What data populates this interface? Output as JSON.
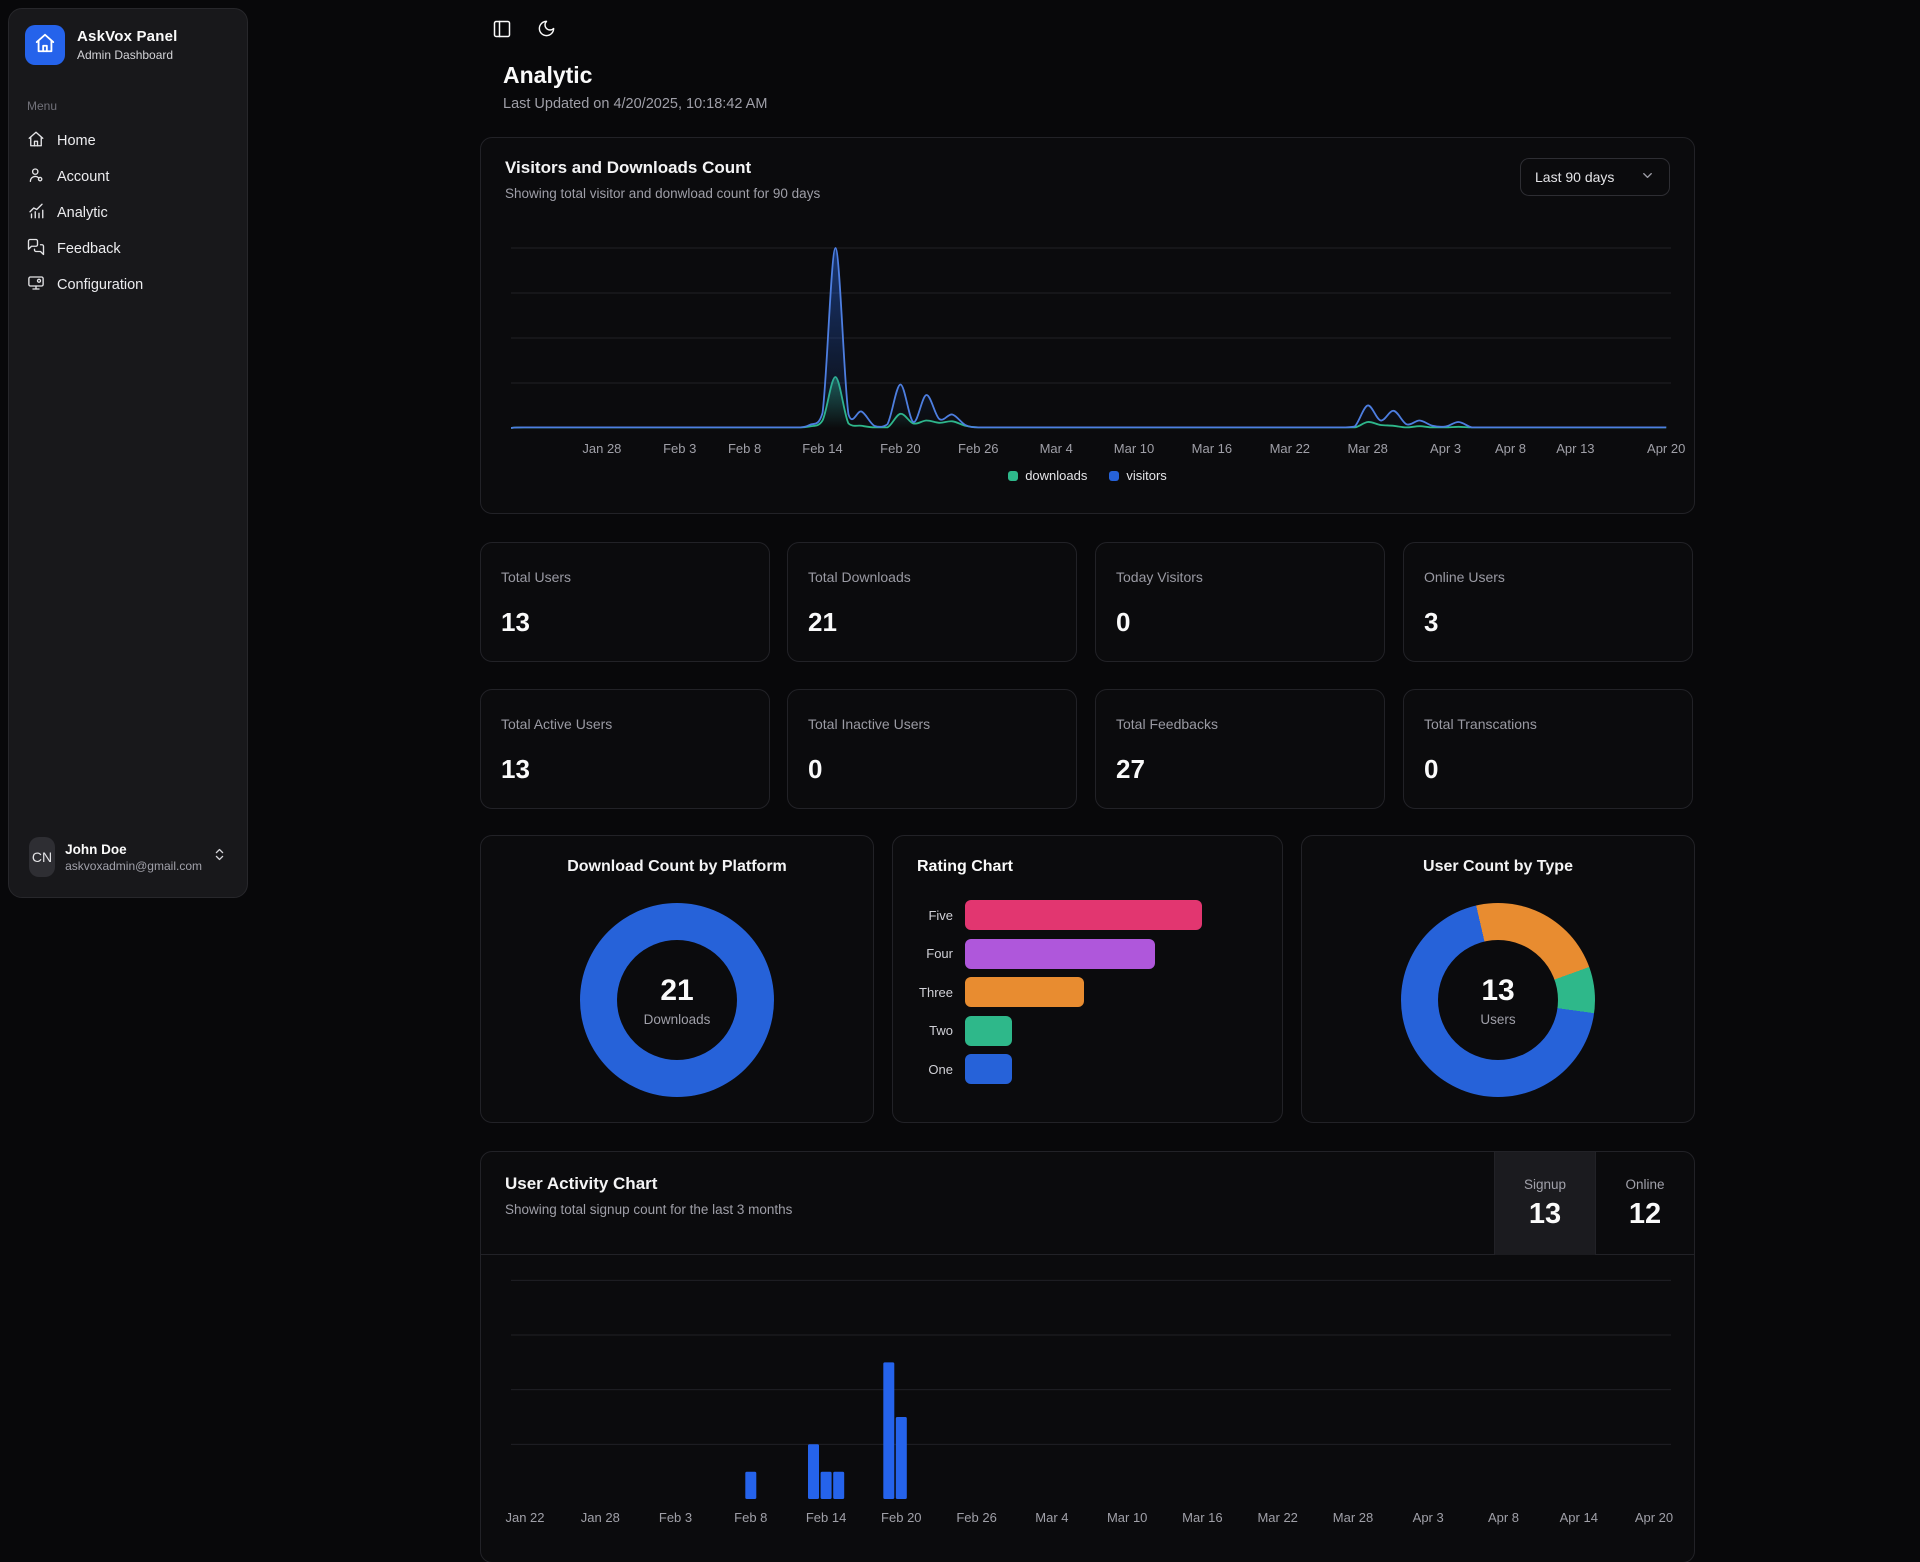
{
  "sidebar": {
    "app_name": "AskVox Panel",
    "app_subtitle": "Admin Dashboard",
    "menu_label": "Menu",
    "menu": [
      {
        "label": "Home"
      },
      {
        "label": "Account"
      },
      {
        "label": "Analytic"
      },
      {
        "label": "Feedback"
      },
      {
        "label": "Configuration"
      }
    ],
    "user": {
      "initials": "CN",
      "name": "John Doe",
      "email": "askvoxadmin@gmail.com"
    }
  },
  "header": {
    "title": "Analytic",
    "last_updated": "Last Updated on 4/20/2025, 10:18:42 AM"
  },
  "visitors_card": {
    "title": "Visitors and Downloads Count",
    "subtitle": "Showing total visitor and donwload count for 90 days",
    "range_select": "Last 90 days",
    "legend": {
      "downloads": "downloads",
      "visitors": "visitors"
    }
  },
  "stats": [
    {
      "label": "Total Users",
      "value": "13"
    },
    {
      "label": "Total Downloads",
      "value": "21"
    },
    {
      "label": "Today Visitors",
      "value": "0"
    },
    {
      "label": "Online Users",
      "value": "3"
    },
    {
      "label": "Total Active Users",
      "value": "13"
    },
    {
      "label": "Total Inactive Users",
      "value": "0"
    },
    {
      "label": "Total Feedbacks",
      "value": "27"
    },
    {
      "label": "Total Transcations",
      "value": "0"
    }
  ],
  "platform_card": {
    "title": "Download Count by Platform",
    "center_value": "21",
    "center_label": "Downloads"
  },
  "rating_card": {
    "title": "Rating Chart"
  },
  "user_type_card": {
    "title": "User Count by Type",
    "center_value": "13",
    "center_label": "Users"
  },
  "activity_card": {
    "title": "User Activity Chart",
    "subtitle": "Showing total signup count for the last 3 months",
    "toggles": [
      {
        "label": "Signup",
        "value": "13"
      },
      {
        "label": "Online",
        "value": "12"
      }
    ]
  },
  "colors": {
    "blue": "#2662d9",
    "blue_bright": "#4d7ee0",
    "bar_blue": "#2563eb",
    "green": "#2eb88a",
    "orange": "#e88c30",
    "purple": "#af57db",
    "pink": "#e23670"
  },
  "chart_data": {
    "visitors_downloads": {
      "type": "area",
      "title": "Visitors and Downloads Count",
      "x_start_date": "Jan 21",
      "days": 90,
      "ylim": [
        0,
        12
      ],
      "grid_values": [
        3,
        6,
        9,
        12
      ],
      "x_ticks": [
        {
          "label": "Jan 28",
          "day": 7
        },
        {
          "label": "Feb 3",
          "day": 13
        },
        {
          "label": "Feb 8",
          "day": 18
        },
        {
          "label": "Feb 14",
          "day": 24
        },
        {
          "label": "Feb 20",
          "day": 30
        },
        {
          "label": "Feb 26",
          "day": 36
        },
        {
          "label": "Mar 4",
          "day": 42
        },
        {
          "label": "Mar 10",
          "day": 48
        },
        {
          "label": "Mar 16",
          "day": 54
        },
        {
          "label": "Mar 22",
          "day": 60
        },
        {
          "label": "Mar 28",
          "day": 66
        },
        {
          "label": "Apr 3",
          "day": 72
        },
        {
          "label": "Apr 8",
          "day": 77
        },
        {
          "label": "Apr 13",
          "day": 82
        },
        {
          "label": "Apr 20",
          "day": 89
        }
      ],
      "series": [
        {
          "name": "downloads",
          "color": "#2eb88a",
          "points": [
            [
              23,
              0.1
            ],
            [
              24,
              0.5
            ],
            [
              25,
              3.4
            ],
            [
              26,
              0.3
            ],
            [
              27,
              0.15
            ],
            [
              30,
              0.95
            ],
            [
              31,
              0.3
            ],
            [
              32,
              0.5
            ],
            [
              33,
              0.35
            ],
            [
              34,
              0.45
            ],
            [
              35,
              0.15
            ],
            [
              66,
              0.4
            ],
            [
              67,
              0.2
            ],
            [
              68,
              0.15
            ],
            [
              70,
              0.12
            ],
            [
              73,
              0.08
            ]
          ]
        },
        {
          "name": "visitors",
          "color": "#4d7ee0",
          "points": [
            [
              23,
              0.2
            ],
            [
              24,
              1.0
            ],
            [
              25,
              12
            ],
            [
              26,
              0.9
            ],
            [
              27,
              1.1
            ],
            [
              28,
              0.15
            ],
            [
              29,
              0.25
            ],
            [
              30,
              2.9
            ],
            [
              31,
              0.4
            ],
            [
              32,
              2.2
            ],
            [
              33,
              0.6
            ],
            [
              34,
              0.9
            ],
            [
              35,
              0.2
            ],
            [
              65,
              0.1
            ],
            [
              66,
              1.5
            ],
            [
              67,
              0.5
            ],
            [
              68,
              1.15
            ],
            [
              69,
              0.25
            ],
            [
              70,
              0.5
            ],
            [
              71,
              0.15
            ],
            [
              72,
              0.1
            ],
            [
              73,
              0.4
            ],
            [
              74,
              0.05
            ]
          ]
        }
      ]
    },
    "rating": {
      "type": "bar",
      "orientation": "horizontal",
      "title": "Rating Chart",
      "categories": [
        "Five",
        "Four",
        "Three",
        "Two",
        "One"
      ],
      "values": [
        10,
        8,
        5,
        2,
        2
      ],
      "colors": [
        "#e23670",
        "#af57db",
        "#e88c30",
        "#2eb88a",
        "#2662d9"
      ]
    },
    "platform_downloads": {
      "type": "pie",
      "title": "Download Count by Platform",
      "center_value": 21,
      "center_label": "Downloads",
      "segments": [
        {
          "label": "downloads",
          "value": 21,
          "color": "#2662d9"
        }
      ]
    },
    "user_count_by_type": {
      "type": "pie",
      "title": "User Count by Type",
      "center_value": 13,
      "center_label": "Users",
      "rotation_deg": 347,
      "segments": [
        {
          "value": 3,
          "color": "#e88c30"
        },
        {
          "value": 1,
          "color": "#2eb88a"
        },
        {
          "value": 9,
          "color": "#2662d9"
        }
      ]
    },
    "activity": {
      "type": "bar",
      "title": "User Activity Chart",
      "ylim": [
        0,
        8
      ],
      "grid_values": [
        2,
        4,
        6,
        8
      ],
      "x_ticks": [
        "Jan 22",
        "Jan 28",
        "Feb 3",
        "Feb 8",
        "Feb 14",
        "Feb 20",
        "Feb 26",
        "Mar 4",
        "Mar 10",
        "Mar 16",
        "Mar 22",
        "Mar 28",
        "Apr 3",
        "Apr 8",
        "Apr 14",
        "Apr 20"
      ],
      "bars": [
        {
          "label": "Feb 8",
          "x_tick": 3.0,
          "value": 1
        },
        {
          "label": "Feb 13",
          "x_tick": 3.833,
          "value": 2
        },
        {
          "label": "Feb 14",
          "x_tick": 4.0,
          "value": 1
        },
        {
          "label": "Feb 15",
          "x_tick": 4.167,
          "value": 1
        },
        {
          "label": "Feb 19",
          "x_tick": 4.833,
          "value": 5
        },
        {
          "label": "Feb 20",
          "x_tick": 5.0,
          "value": 3
        }
      ],
      "bar_color": "#2563eb"
    }
  }
}
